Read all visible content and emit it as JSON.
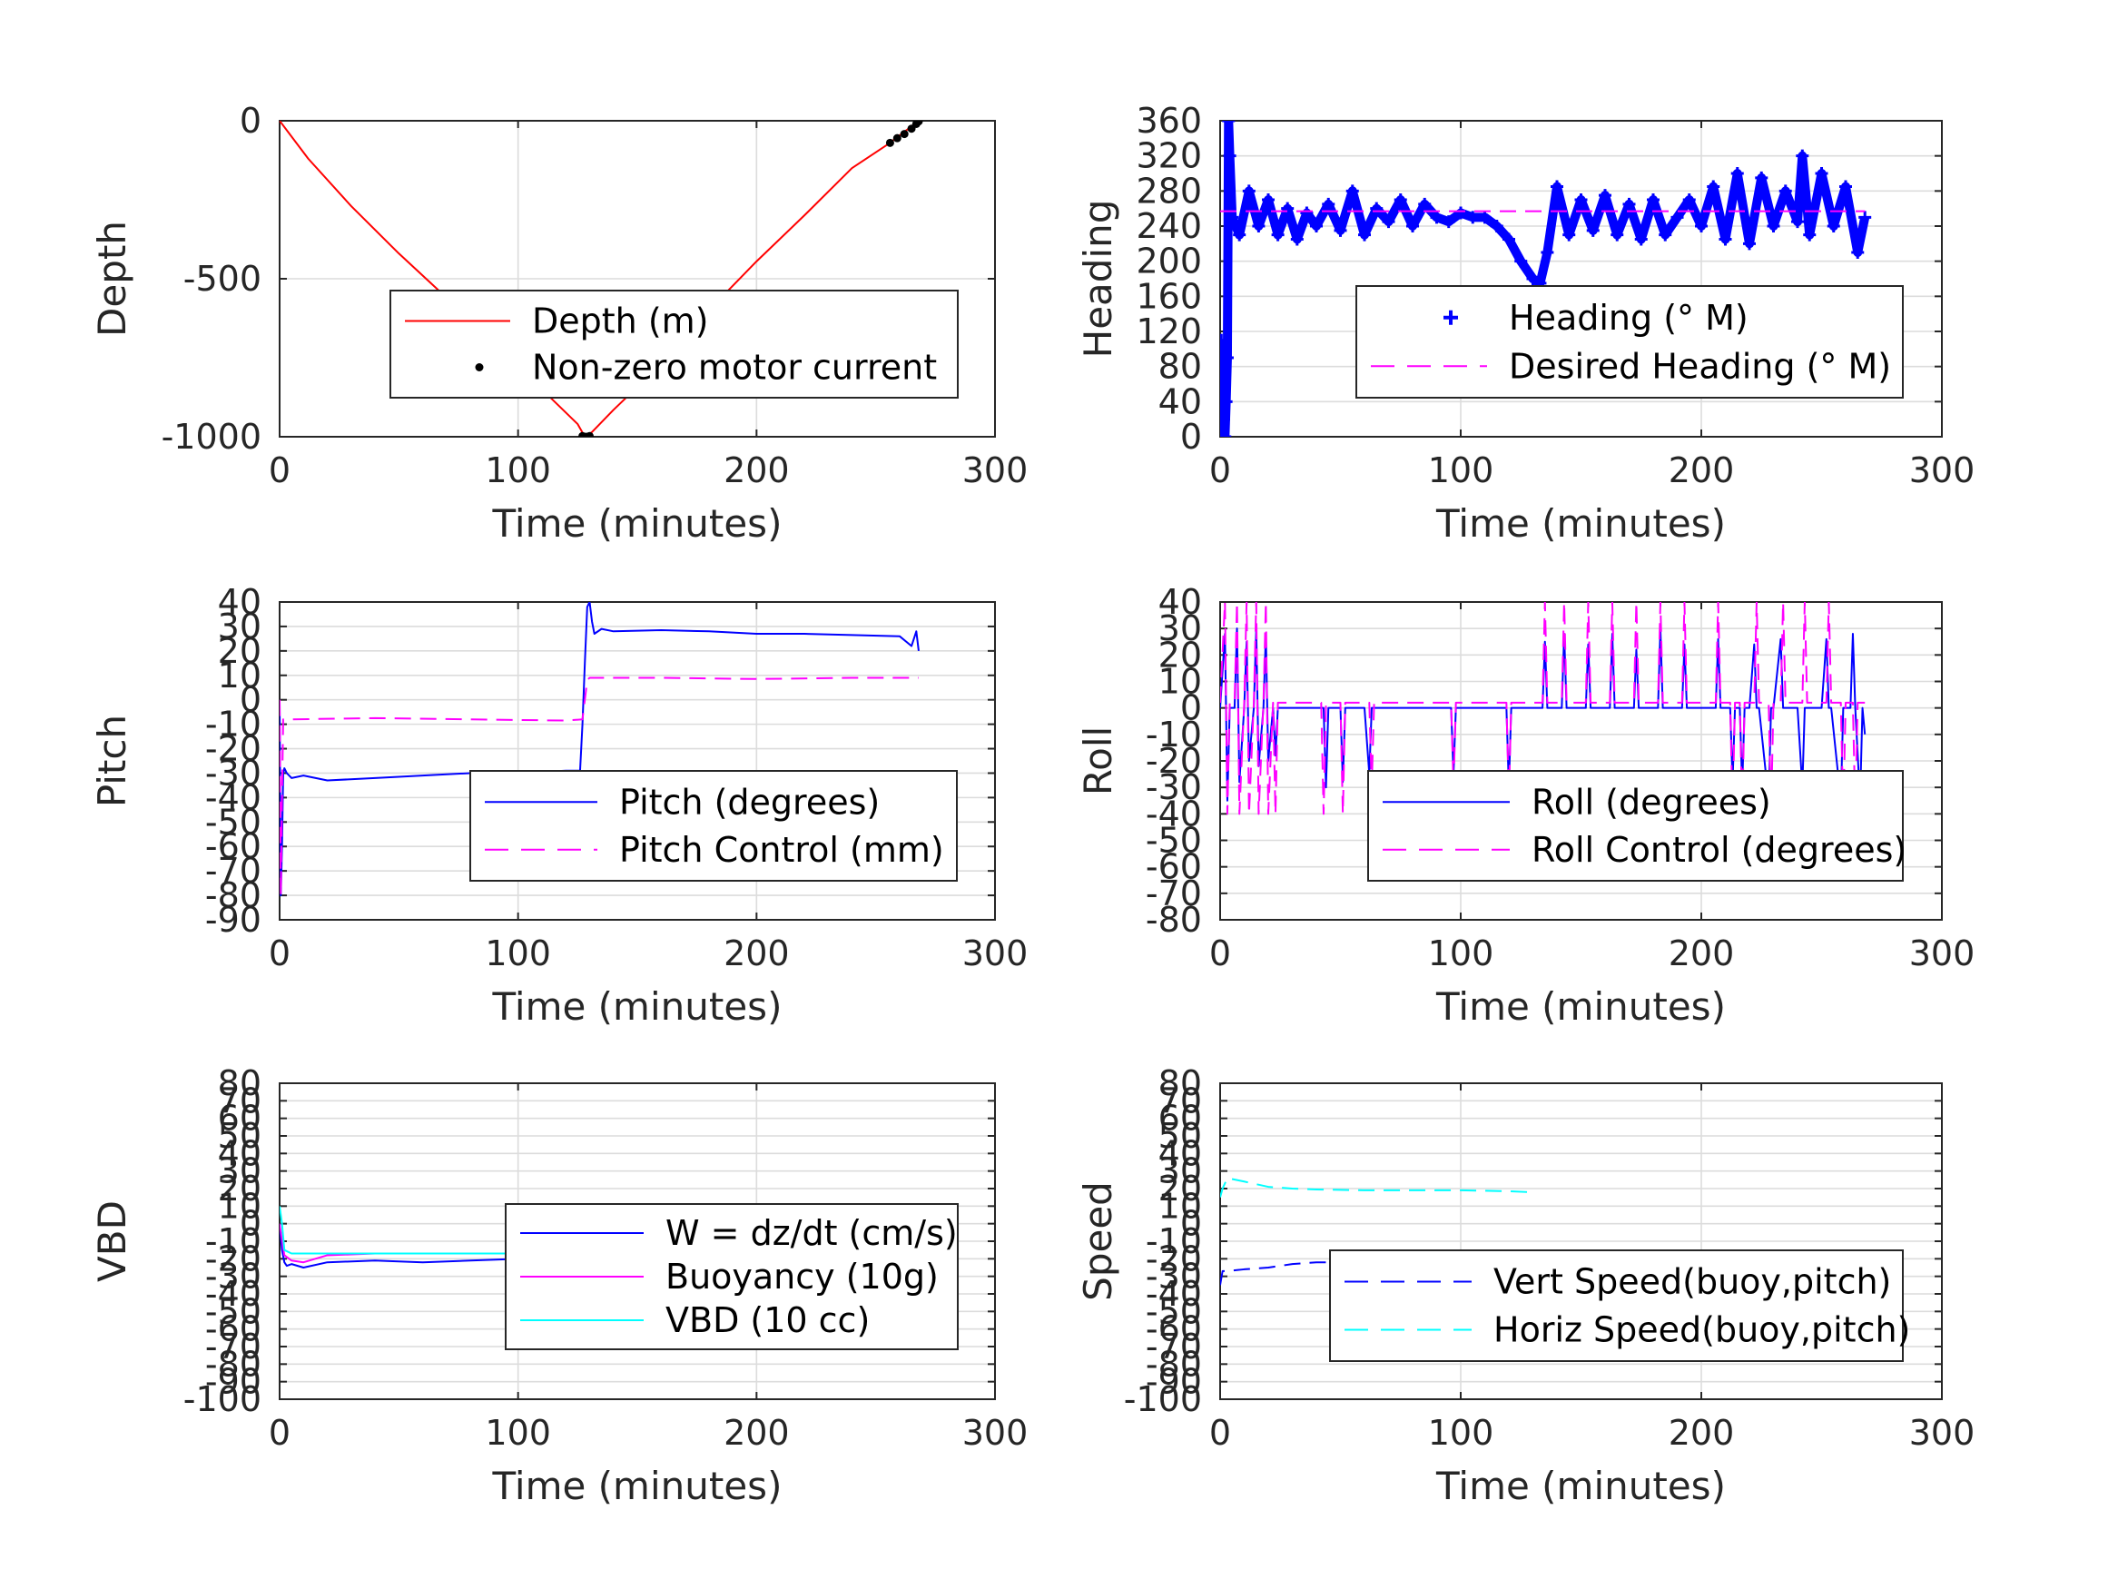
{
  "chart_data": [
    {
      "type": "line",
      "xlabel": "Time (minutes)",
      "ylabel": "Depth",
      "xlim": [
        0,
        300
      ],
      "ylim": [
        -1000,
        0
      ],
      "xticks": [
        0,
        100,
        200,
        300
      ],
      "yticks": [
        -1000,
        -500,
        0
      ],
      "grid": true,
      "legend_position": "center-right",
      "series": [
        {
          "name": "Depth (m)",
          "color": "#ff0000",
          "style": "solid",
          "x": [
            0,
            12,
            30,
            50,
            70,
            90,
            110,
            125,
            128,
            131,
            140,
            160,
            180,
            200,
            220,
            240,
            255,
            262,
            268
          ],
          "y": [
            0,
            -120,
            -270,
            -420,
            -560,
            -700,
            -850,
            -960,
            -1000,
            -985,
            -915,
            -770,
            -600,
            -445,
            -300,
            -150,
            -75,
            -35,
            0
          ]
        },
        {
          "name": "Non-zero motor current",
          "color": "#000000",
          "style": "dots",
          "x": [
            127,
            128,
            129,
            130,
            256,
            259,
            262,
            265,
            267,
            268
          ],
          "y": [
            -998,
            -1000,
            -1000,
            -998,
            -70,
            -55,
            -42,
            -25,
            -10,
            -2
          ]
        }
      ]
    },
    {
      "type": "line",
      "xlabel": "Time (minutes)",
      "ylabel": "Heading",
      "xlim": [
        0,
        300
      ],
      "ylim": [
        0,
        360
      ],
      "xticks": [
        0,
        100,
        200,
        300
      ],
      "yticks": [
        0,
        40,
        80,
        120,
        160,
        200,
        240,
        280,
        320,
        360
      ],
      "grid": true,
      "legend_position": "center-right",
      "series": [
        {
          "name": "Heading (° M)",
          "color": "#0000ff",
          "style": "plus",
          "x": [
            0.5,
            1,
            1.5,
            2,
            2.5,
            3,
            3.5,
            4,
            5,
            8,
            12,
            16,
            20,
            24,
            28,
            32,
            36,
            40,
            45,
            50,
            55,
            60,
            65,
            70,
            75,
            80,
            85,
            90,
            95,
            100,
            105,
            110,
            115,
            120,
            125,
            130,
            133,
            136,
            140,
            145,
            150,
            155,
            160,
            165,
            170,
            175,
            180,
            185,
            190,
            195,
            200,
            205,
            210,
            215,
            220,
            225,
            230,
            235,
            240,
            242,
            245,
            250,
            255,
            260,
            265,
            268
          ],
          "y": [
            110,
            60,
            20,
            0,
            40,
            90,
            360,
            320,
            250,
            230,
            280,
            240,
            270,
            230,
            260,
            225,
            255,
            240,
            265,
            235,
            280,
            230,
            260,
            245,
            270,
            240,
            265,
            250,
            245,
            255,
            250,
            250,
            240,
            225,
            200,
            180,
            175,
            210,
            285,
            230,
            270,
            235,
            275,
            230,
            265,
            225,
            270,
            230,
            250,
            270,
            240,
            285,
            225,
            300,
            220,
            295,
            240,
            280,
            245,
            320,
            230,
            300,
            240,
            285,
            210,
            250
          ]
        },
        {
          "name": "Desired Heading (° M)",
          "color": "#ff00ff",
          "style": "dashed",
          "x": [
            0,
            268
          ],
          "y": [
            257,
            257
          ]
        }
      ]
    },
    {
      "type": "line",
      "xlabel": "Time (minutes)",
      "ylabel": "Pitch",
      "xlim": [
        0,
        300
      ],
      "ylim": [
        -90,
        40
      ],
      "xticks": [
        0,
        100,
        200,
        300
      ],
      "yticks": [
        -90,
        -80,
        -70,
        -60,
        -50,
        -40,
        -30,
        -20,
        -10,
        0,
        10,
        20,
        30,
        40
      ],
      "grid": true,
      "legend_position": "center-right",
      "series": [
        {
          "name": "Pitch (degrees)",
          "color": "#0000ff",
          "style": "solid",
          "x": [
            0,
            0.5,
            1,
            1.5,
            2,
            3,
            5,
            10,
            20,
            40,
            60,
            80,
            100,
            120,
            126,
            127,
            128,
            129,
            130,
            131,
            132,
            135,
            140,
            160,
            180,
            200,
            220,
            240,
            260,
            265,
            267,
            268
          ],
          "y": [
            0,
            -80,
            -60,
            -30,
            -28,
            -30,
            -32,
            -31,
            -33,
            -32,
            -31,
            -30,
            -30,
            -29,
            -29,
            -10,
            15,
            38,
            40,
            32,
            27,
            29,
            28,
            28.5,
            28,
            27,
            27,
            26.5,
            26,
            22,
            28,
            20
          ]
        },
        {
          "name": "Pitch Control (mm)",
          "color": "#ff00ff",
          "style": "dashed",
          "x": [
            0,
            0.5,
            1,
            1.5,
            2,
            5,
            40,
            80,
            120,
            127,
            128,
            129,
            130,
            160,
            200,
            240,
            268
          ],
          "y": [
            0,
            -80,
            -40,
            -8,
            -8,
            -8,
            -7.5,
            -8,
            -8.5,
            -8,
            0,
            8,
            9,
            9,
            8.5,
            9,
            9
          ]
        }
      ]
    },
    {
      "type": "line",
      "xlabel": "Time (minutes)",
      "ylabel": "Roll",
      "xlim": [
        0,
        300
      ],
      "ylim": [
        -80,
        40
      ],
      "xticks": [
        0,
        100,
        200,
        300
      ],
      "yticks": [
        -80,
        -70,
        -60,
        -50,
        -40,
        -30,
        -20,
        -10,
        0,
        10,
        20,
        30,
        40
      ],
      "grid": true,
      "legend_position": "center-right",
      "series": [
        {
          "name": "Roll (degrees)",
          "color": "#0000ff",
          "style": "solid",
          "x": [
            0,
            2,
            3,
            4,
            6,
            7,
            8,
            10,
            11,
            12,
            14,
            15,
            16,
            18,
            19,
            20,
            22,
            23,
            24,
            40,
            43,
            44,
            45,
            50,
            51,
            52,
            60,
            62,
            63,
            64,
            90,
            96,
            97,
            98,
            115,
            119,
            120,
            121,
            128,
            134,
            135,
            136,
            140,
            142,
            143,
            144,
            150,
            152,
            153,
            154,
            160,
            162,
            163,
            164,
            170,
            172,
            173,
            174,
            180,
            182,
            183,
            184,
            190,
            192,
            193,
            194,
            200,
            206,
            207,
            208,
            212,
            213,
            214,
            216,
            217,
            218,
            220,
            222,
            223,
            224,
            228,
            229,
            230,
            233,
            234,
            235,
            240,
            242,
            243,
            244,
            250,
            252,
            253,
            254,
            258,
            259,
            260,
            262,
            263,
            264,
            266,
            267,
            268
          ],
          "y": [
            0,
            28,
            -35,
            0,
            0,
            30,
            -28,
            0,
            25,
            -20,
            0,
            30,
            -22,
            0,
            28,
            -20,
            0,
            -18,
            0,
            0,
            0,
            -30,
            0,
            0,
            -28,
            0,
            0,
            -25,
            0,
            0,
            0,
            0,
            -25,
            0,
            0,
            0,
            -30,
            0,
            0,
            0,
            25,
            0,
            0,
            0,
            28,
            0,
            0,
            0,
            24,
            0,
            0,
            0,
            28,
            0,
            0,
            0,
            22,
            0,
            0,
            0,
            30,
            0,
            0,
            0,
            24,
            0,
            0,
            0,
            26,
            0,
            0,
            -28,
            0,
            0,
            -30,
            0,
            0,
            24,
            0,
            0,
            -35,
            0,
            0,
            26,
            0,
            0,
            0,
            -30,
            0,
            0,
            0,
            26,
            0,
            0,
            -35,
            0,
            0,
            0,
            28,
            0,
            -35,
            0,
            -10
          ]
        },
        {
          "name": "Roll Control (degrees)",
          "color": "#ff00ff",
          "style": "dashed",
          "x": [
            0,
            2,
            3,
            4,
            6,
            7,
            8,
            10,
            11,
            12,
            14,
            15,
            16,
            18,
            19,
            20,
            22,
            23,
            24,
            42,
            43,
            44,
            50,
            51,
            52,
            62,
            63,
            64,
            96,
            97,
            98,
            119,
            120,
            121,
            134,
            135,
            136,
            142,
            143,
            144,
            152,
            153,
            154,
            162,
            163,
            164,
            172,
            173,
            174,
            182,
            183,
            184,
            192,
            193,
            194,
            206,
            207,
            208,
            212,
            213,
            214,
            216,
            217,
            218,
            222,
            223,
            224,
            228,
            229,
            230,
            233,
            234,
            235,
            242,
            243,
            244,
            252,
            253,
            254,
            258,
            259,
            260,
            263,
            264,
            265,
            268
          ],
          "y": [
            2,
            40,
            -40,
            2,
            2,
            40,
            -40,
            2,
            40,
            -40,
            2,
            40,
            -40,
            2,
            40,
            -40,
            2,
            -40,
            2,
            2,
            -40,
            2,
            2,
            -40,
            2,
            2,
            -30,
            2,
            2,
            -30,
            2,
            2,
            -35,
            2,
            2,
            40,
            2,
            2,
            40,
            2,
            2,
            40,
            2,
            2,
            40,
            2,
            2,
            40,
            2,
            2,
            40,
            2,
            2,
            40,
            2,
            2,
            40,
            2,
            2,
            -40,
            2,
            2,
            -40,
            2,
            2,
            40,
            2,
            2,
            -40,
            2,
            2,
            40,
            2,
            2,
            40,
            2,
            2,
            40,
            2,
            2,
            -40,
            2,
            2,
            -40,
            2,
            2
          ]
        }
      ]
    },
    {
      "type": "line",
      "xlabel": "Time (minutes)",
      "ylabel": "VBD",
      "xlim": [
        0,
        300
      ],
      "ylim": [
        -100,
        80
      ],
      "xticks": [
        0,
        100,
        200,
        300
      ],
      "yticks": [
        -100,
        -90,
        -80,
        -70,
        -60,
        -50,
        -40,
        -30,
        -20,
        -10,
        0,
        10,
        20,
        30,
        40,
        50,
        60,
        70,
        80
      ],
      "grid": true,
      "legend_position": "center-right",
      "series": [
        {
          "name": "W = dz/dt (cm/s)",
          "color": "#0000ff",
          "style": "solid",
          "x": [
            0,
            1,
            2,
            3,
            5,
            10,
            20,
            40,
            60,
            80,
            100,
            120,
            126,
            127,
            128,
            130,
            135,
            150,
            170,
            190,
            210,
            230,
            250,
            260,
            265,
            268
          ],
          "y": [
            0,
            -15,
            -22,
            -24,
            -23,
            -25,
            -22,
            -21,
            -22,
            -21,
            -20,
            -21,
            -20,
            -10,
            3,
            6,
            5.5,
            6,
            5,
            5.5,
            5,
            4,
            4.5,
            3,
            5,
            2
          ]
        },
        {
          "name": "Buoyancy (10g)",
          "color": "#ff00ff",
          "style": "solid",
          "x": [
            0,
            2,
            5,
            10,
            20,
            40,
            80,
            126,
            128,
            130,
            268
          ],
          "y": [
            0,
            -18,
            -21,
            -22,
            -18,
            -17,
            -17,
            -17,
            0,
            3,
            3
          ]
        },
        {
          "name": "VBD (10 cc)",
          "color": "#00ffff",
          "style": "solid",
          "x": [
            0,
            1,
            2,
            5,
            20,
            80,
            126,
            127,
            128,
            130,
            268
          ],
          "y": [
            10,
            0,
            -15,
            -17,
            -17,
            -17,
            -17,
            0,
            2,
            2,
            2
          ]
        }
      ]
    },
    {
      "type": "line",
      "xlabel": "Time (minutes)",
      "ylabel": "Speed",
      "xlim": [
        0,
        300
      ],
      "ylim": [
        -100,
        80
      ],
      "xticks": [
        0,
        100,
        200,
        300
      ],
      "yticks": [
        -100,
        -90,
        -80,
        -70,
        -60,
        -50,
        -40,
        -30,
        -20,
        -10,
        0,
        10,
        20,
        30,
        40,
        50,
        60,
        70,
        80
      ],
      "grid": true,
      "legend_position": "center-right",
      "series": [
        {
          "name": "Vert Speed(buoy,pitch)",
          "color": "#0000ff",
          "style": "dashed",
          "x": [
            0,
            1,
            3,
            10,
            20,
            30,
            40,
            60,
            80,
            100,
            120,
            125
          ],
          "y": [
            -35,
            -27,
            -27,
            -26,
            -25,
            -23,
            -22,
            -22,
            -22,
            -22,
            -22,
            -22
          ]
        },
        {
          "name": "Horiz Speed(buoy,pitch)",
          "color": "#00ffff",
          "style": "dashed",
          "x": [
            0,
            1,
            3,
            10,
            20,
            30,
            40,
            60,
            80,
            100,
            120,
            128
          ],
          "y": [
            15,
            20,
            26,
            24,
            21,
            20,
            19.5,
            19,
            19,
            19,
            18.5,
            18
          ]
        }
      ]
    }
  ]
}
